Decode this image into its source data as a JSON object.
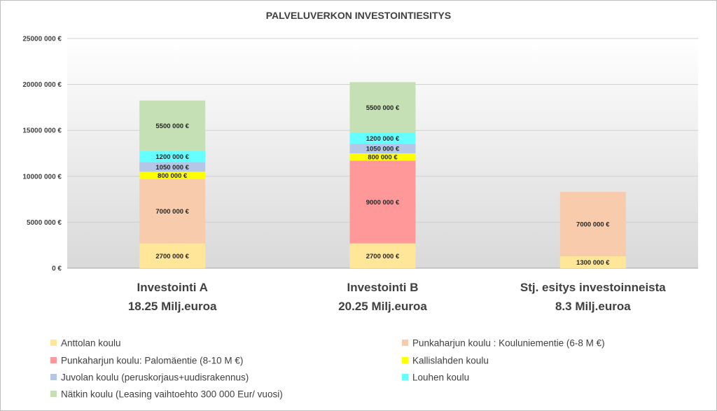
{
  "chart_data": {
    "type": "bar",
    "stacked": true,
    "title": "PALVELUVERKON INVESTOINTIESITYS",
    "categories": [
      [
        "Investointi A",
        "18.25 Milj.euroa"
      ],
      [
        "Investointi B",
        "20.25 Milj.euroa"
      ],
      [
        "Stj. esitys investoinneista",
        "8.3 Milj.euroa"
      ]
    ],
    "ylim": [
      0,
      25000000
    ],
    "yticks": [
      0,
      5000000,
      10000000,
      15000000,
      20000000,
      25000000
    ],
    "ytick_labels": [
      "0 €",
      "5000 000 €",
      "10000 000 €",
      "15000 000 €",
      "20000 000 €",
      "25000 000 €"
    ],
    "grid": true,
    "legend_position": "bottom",
    "series": [
      {
        "name": "Anttolan koulu",
        "color": "#ffe699",
        "values": [
          2700000,
          2700000,
          1300000
        ],
        "labels": [
          "2700 000 €",
          "2700 000 €",
          "1300 000 €"
        ]
      },
      {
        "name": "Punkaharjun koulu : Kouluniementie (6-8 M €)",
        "color": "#f8cbad",
        "values": [
          7000000,
          0,
          7000000
        ],
        "labels": [
          "7000 000 €",
          "",
          "7000 000 €"
        ]
      },
      {
        "name": "Punkaharjun koulu: Palomäentie  (8-10 M €)",
        "color": "#ff9999",
        "values": [
          0,
          9000000,
          0
        ],
        "labels": [
          "",
          "9000 000 €",
          ""
        ]
      },
      {
        "name": "Kallislahden koulu",
        "color": "#ffff00",
        "values": [
          800000,
          800000,
          0
        ],
        "labels": [
          "800 000 €",
          "800 000 €",
          ""
        ]
      },
      {
        "name": "Juvolan koulu (peruskorjaus+uudisrakennus)",
        "color": "#b4c7e7",
        "values": [
          1050000,
          1050000,
          0
        ],
        "labels": [
          "1050 000 €",
          "1050 000 €",
          ""
        ]
      },
      {
        "name": "Louhen koulu",
        "color": "#66ffff",
        "values": [
          1200000,
          1200000,
          0
        ],
        "labels": [
          "1200 000 €",
          "1200 000 €",
          ""
        ]
      },
      {
        "name": "Nätkin koulu (Leasing vaihtoehto 300 000 Eur/ vuosi)",
        "color": "#c5e0b4",
        "values": [
          5500000,
          5500000,
          0
        ],
        "labels": [
          "5500 000 €",
          "5500 000 €",
          ""
        ]
      }
    ]
  }
}
